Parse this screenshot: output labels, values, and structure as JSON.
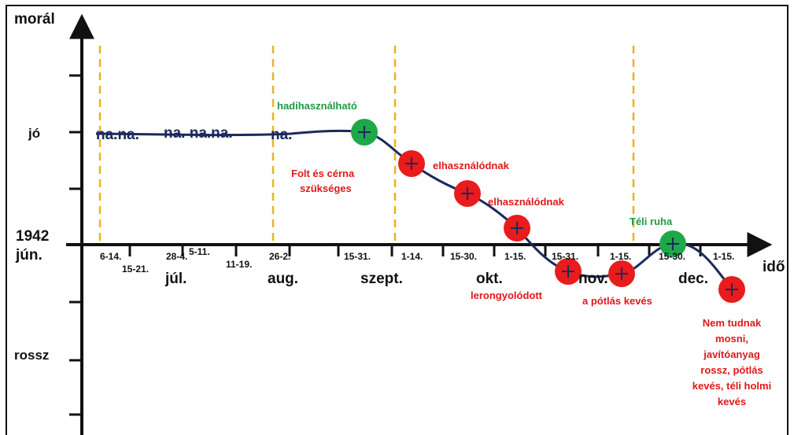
{
  "axes": {
    "y_label": "morál",
    "x_label": "idő",
    "start_label_line1": "1942",
    "start_label_line2": "jún.",
    "y_levels": [
      "jó",
      "rossz"
    ]
  },
  "months": [
    "júl.",
    "aug.",
    "szept.",
    "okt.",
    "nov.",
    "dec."
  ],
  "date_ticks": [
    "6-14.",
    "15-21.",
    "28-4.",
    "5-11.",
    "11-19.",
    "26-2.",
    "15-31.",
    "1-14.",
    "15-30.",
    "1-15.",
    "15-31.",
    "1-15.",
    "15-30.",
    "1-15."
  ],
  "flat_text": [
    "na.na.",
    "na. na.na.",
    "na."
  ],
  "annotations": {
    "hadihasznalhato": "hadihasználható",
    "folt_line1": "Folt és cérna",
    "folt_line2": "szükséges",
    "elhasznalodnak1": "elhasználódnak",
    "elhasznalodnak2": "elhasználódnak",
    "lerongyolodott": "lerongyolódott",
    "potlas_keves": "a pótlás kevés",
    "teli_ruha": "Téli ruha",
    "final_lines": [
      "Nem tudnak",
      "mosni,",
      "javítóanyag",
      "rossz, pótlás",
      "kevés, téli holmi",
      "kevés"
    ]
  },
  "colors": {
    "axis": "#111111",
    "curve": "#1b2a5c",
    "dashed": "#e6b422",
    "good_marker": "#1fa84a",
    "bad_marker": "#e81c1c",
    "good_text": "#1f9a46",
    "bad_text": "#e01818"
  }
}
